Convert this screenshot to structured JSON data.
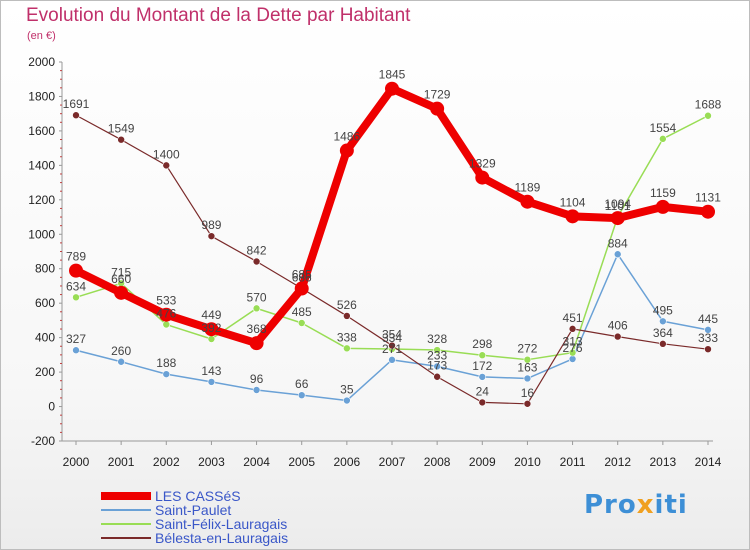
{
  "title": "Evolution du Montant de la Dette par Habitant",
  "unit": "(en €)",
  "logo": {
    "part1": "Pro",
    "part2": "x",
    "part3": "iti"
  },
  "chart_data": {
    "type": "line",
    "title": "Evolution du Montant de la Dette par Habitant",
    "subtitle": "(en €)",
    "x": [
      "2000",
      "2001",
      "2002",
      "2003",
      "2004",
      "2005",
      "2006",
      "2007",
      "2008",
      "2009",
      "2010",
      "2011",
      "2012",
      "2013",
      "2014"
    ],
    "ylim": [
      -200,
      2000
    ],
    "yticks": [
      -200,
      0,
      200,
      400,
      600,
      800,
      1000,
      1200,
      1400,
      1600,
      1800,
      2000
    ],
    "grid": false,
    "legend_position": "bottom-left",
    "series": [
      {
        "name": "LES CASSéS",
        "color": "#ee0000",
        "values": [
          789,
          660,
          533,
          449,
          368,
          685,
          1486,
          1845,
          1729,
          1329,
          1189,
          1104,
          1094,
          1159,
          1131
        ]
      },
      {
        "name": "Saint-Paulet",
        "color": "#6aa1d6",
        "values": [
          327,
          260,
          188,
          143,
          96,
          66,
          35,
          271,
          233,
          172,
          163,
          276,
          884,
          495,
          445
        ]
      },
      {
        "name": "Saint-Félix-Lauragais",
        "color": "#99dd55",
        "values": [
          634,
          715,
          476,
          392,
          570,
          485,
          338,
          334,
          328,
          298,
          272,
          313,
          1101,
          1554,
          1688
        ]
      },
      {
        "name": "Bélesta-en-Lauragais",
        "color": "#7a2a2a",
        "values": [
          1691,
          1549,
          1400,
          989,
          842,
          686,
          526,
          354,
          173,
          24,
          16,
          451,
          406,
          364,
          333
        ]
      }
    ]
  }
}
